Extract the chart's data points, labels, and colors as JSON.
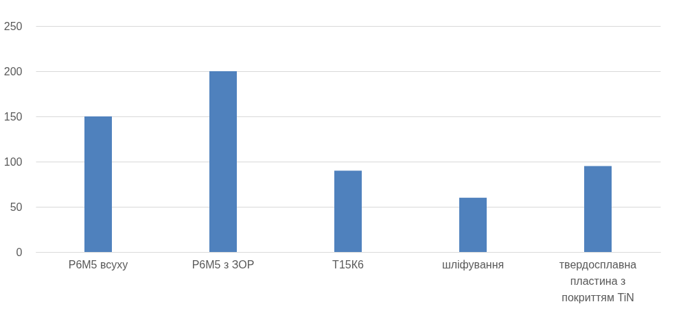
{
  "chart_data": {
    "type": "bar",
    "categories": [
      "Р6М5 всуху",
      "Р6М5 з ЗОР",
      "Т15К6",
      "шліфування",
      "твердосплавна пластина з покриттям TiN"
    ],
    "values": [
      150,
      200,
      90,
      60,
      95
    ],
    "color": "#4f81bd",
    "ylim": [
      0,
      250
    ],
    "yticks": [
      0,
      50,
      100,
      150,
      200,
      250
    ],
    "grid": "y"
  }
}
